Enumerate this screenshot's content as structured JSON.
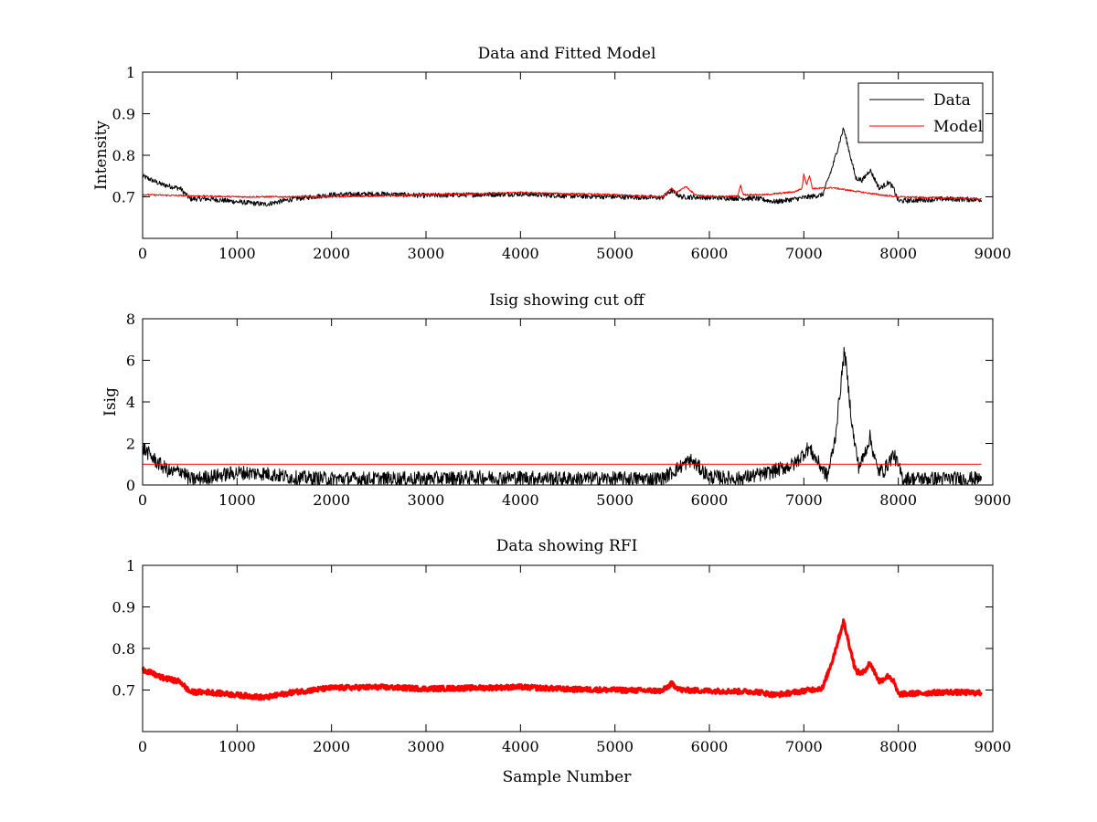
{
  "figure": {
    "background": "#ffffff"
  },
  "colors": {
    "data": "#000000",
    "model": "#ff0000",
    "rfi": "#ff0000",
    "cutoff": "#ff0000"
  },
  "chart_data": [
    {
      "type": "line",
      "title": "Data and Fitted Model",
      "xlabel": "",
      "ylabel": "Intensity",
      "xlim": [
        0,
        9000
      ],
      "ylim": [
        0.6,
        1.0
      ],
      "xticks": [
        "0",
        "1000",
        "2000",
        "3000",
        "4000",
        "5000",
        "6000",
        "7000",
        "8000",
        "9000"
      ],
      "yticks": [
        "0.7",
        "0.8",
        "0.9",
        "1"
      ],
      "legend": {
        "placement": "top-right",
        "entries": [
          "Data",
          "Model"
        ]
      },
      "series": [
        {
          "name": "Data",
          "color": "#000000",
          "noise": 0.006,
          "x": [
            0,
            200,
            400,
            500,
            700,
            1000,
            1300,
            1600,
            2000,
            2500,
            3000,
            3500,
            4000,
            4500,
            5000,
            5500,
            5600,
            5700,
            6000,
            6500,
            6700,
            7000,
            7200,
            7300,
            7420,
            7550,
            7620,
            7700,
            7800,
            7900,
            7950,
            8000,
            8500,
            8880
          ],
          "y": [
            0.75,
            0.73,
            0.72,
            0.695,
            0.695,
            0.688,
            0.682,
            0.695,
            0.705,
            0.707,
            0.703,
            0.705,
            0.707,
            0.702,
            0.7,
            0.698,
            0.715,
            0.7,
            0.698,
            0.696,
            0.688,
            0.698,
            0.705,
            0.77,
            0.865,
            0.745,
            0.74,
            0.765,
            0.72,
            0.735,
            0.72,
            0.69,
            0.695,
            0.693
          ]
        },
        {
          "name": "Model",
          "color": "#ff0000",
          "noise": 0.002,
          "x": [
            0,
            1000,
            2000,
            3000,
            4000,
            5000,
            5500,
            5600,
            5650,
            5750,
            5850,
            6000,
            6300,
            6330,
            6360,
            6600,
            6900,
            6980,
            7000,
            7030,
            7060,
            7090,
            7120,
            7300,
            7500,
            7800,
            8000,
            8880
          ],
          "y": [
            0.705,
            0.7,
            0.7,
            0.705,
            0.71,
            0.705,
            0.7,
            0.72,
            0.71,
            0.725,
            0.705,
            0.7,
            0.702,
            0.728,
            0.705,
            0.705,
            0.712,
            0.72,
            0.755,
            0.73,
            0.752,
            0.72,
            0.72,
            0.722,
            0.715,
            0.705,
            0.7,
            0.695
          ]
        }
      ]
    },
    {
      "type": "line",
      "title": "Isig showing cut off",
      "xlabel": "",
      "ylabel": "Isig",
      "xlim": [
        0,
        9000
      ],
      "ylim": [
        0,
        8
      ],
      "xticks": [
        "0",
        "1000",
        "2000",
        "3000",
        "4000",
        "5000",
        "6000",
        "7000",
        "8000",
        "9000"
      ],
      "yticks": [
        "0",
        "2",
        "4",
        "6",
        "8"
      ],
      "series": [
        {
          "color": "#000000",
          "noise": 0.35,
          "x": [
            0,
            150,
            300,
            420,
            500,
            800,
            1000,
            1300,
            1600,
            2000,
            2500,
            3000,
            3500,
            4000,
            4500,
            5000,
            5500,
            5600,
            5800,
            6000,
            6300,
            6600,
            6900,
            7050,
            7150,
            7250,
            7330,
            7430,
            7520,
            7580,
            7620,
            7700,
            7780,
            7850,
            7950,
            8050,
            8500,
            8880
          ],
          "y": [
            1.8,
            1.1,
            0.6,
            0.7,
            0.25,
            0.45,
            0.6,
            0.55,
            0.35,
            0.3,
            0.3,
            0.3,
            0.35,
            0.35,
            0.3,
            0.3,
            0.3,
            0.6,
            1.2,
            0.4,
            0.3,
            0.55,
            1.0,
            1.8,
            1.1,
            0.4,
            2.2,
            6.5,
            2.5,
            0.9,
            1.2,
            2.3,
            0.7,
            0.7,
            1.5,
            0.3,
            0.3,
            0.3
          ]
        },
        {
          "name": "cut off",
          "color": "#ff0000",
          "noise": 0,
          "x": [
            0,
            8880
          ],
          "y": [
            1,
            1
          ]
        }
      ]
    },
    {
      "type": "line",
      "title": "Data showing RFI",
      "xlabel": "Sample Number",
      "ylabel": "",
      "xlim": [
        0,
        9000
      ],
      "ylim": [
        0.6,
        1.0
      ],
      "xticks": [
        "0",
        "1000",
        "2000",
        "3000",
        "4000",
        "5000",
        "6000",
        "7000",
        "8000",
        "9000"
      ],
      "yticks": [
        "0.7",
        "0.8",
        "0.9",
        "1"
      ],
      "series": [
        {
          "color": "#ff0000",
          "noise": 0.006,
          "x": [
            0,
            200,
            400,
            500,
            700,
            1000,
            1300,
            1600,
            2000,
            2500,
            3000,
            3500,
            4000,
            4500,
            5000,
            5500,
            5600,
            5700,
            6000,
            6500,
            6700,
            7000,
            7200,
            7300,
            7420,
            7550,
            7620,
            7700,
            7800,
            7900,
            7950,
            8000,
            8500,
            8880
          ],
          "y": [
            0.75,
            0.73,
            0.72,
            0.695,
            0.695,
            0.688,
            0.682,
            0.695,
            0.705,
            0.707,
            0.703,
            0.705,
            0.707,
            0.702,
            0.7,
            0.698,
            0.715,
            0.7,
            0.698,
            0.696,
            0.688,
            0.698,
            0.705,
            0.77,
            0.865,
            0.745,
            0.74,
            0.765,
            0.72,
            0.735,
            0.72,
            0.69,
            0.695,
            0.693
          ]
        }
      ]
    }
  ]
}
